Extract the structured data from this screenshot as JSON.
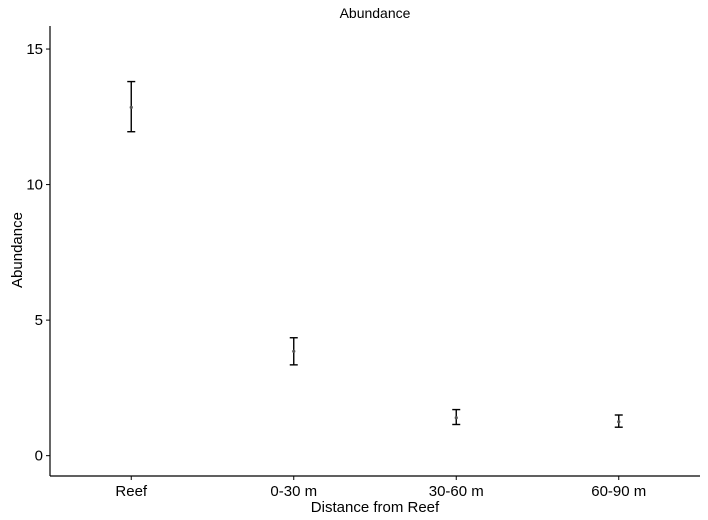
{
  "chart_data": {
    "type": "errorbar",
    "title": "Abundance",
    "xlabel": "Distance from Reef",
    "ylabel": "Abundance",
    "categories": [
      "Reef",
      "0-30 m",
      "30-60 m",
      "60-90 m"
    ],
    "series": [
      {
        "mean": [
          12.85,
          3.85,
          1.4,
          1.25
        ],
        "lower": [
          11.95,
          3.35,
          1.15,
          1.05
        ],
        "upper": [
          13.8,
          4.35,
          1.7,
          1.5
        ]
      }
    ],
    "yticks": [
      0,
      5,
      10,
      15
    ],
    "ylim": [
      -0.75,
      15.85
    ],
    "grid": false,
    "legend": "none"
  }
}
